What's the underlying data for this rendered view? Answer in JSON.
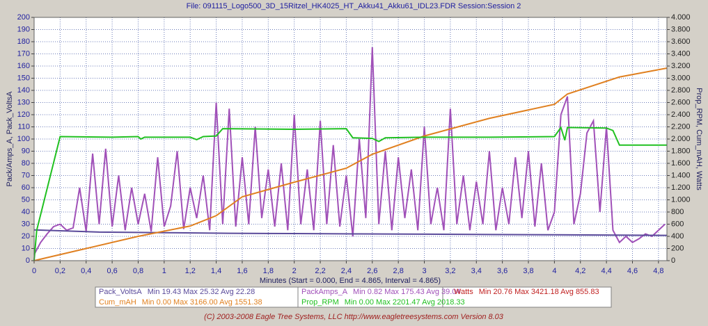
{
  "chart_data": {
    "type": "line",
    "title": "File: 091115_Logo500_3D_15Ritzel_HK4025_HT_Akku41_Akku61_IDL23.FDR   Session:Session 2",
    "x_label": "Minutes (Start = 0.000, End = 4.865, Interval = 4.865)",
    "y_label": "Pack/Amps_A, Pack_VoltsA",
    "y2_label": "Prop_RPM, Cum_mAH, Watts",
    "footer": "(C) 2003-2008 Eagle Tree Systems, LLC      http://www.eagletreesystems.com      Version 8.03",
    "grid": true,
    "xlim": [
      0,
      4.865
    ],
    "xticks": [
      0,
      {
        "value": 0.2,
        "label": "0,2"
      },
      {
        "value": 0.4,
        "label": "0,4"
      },
      {
        "value": 0.6,
        "label": "0,6"
      },
      {
        "value": 0.8,
        "label": "0,8"
      },
      1,
      {
        "value": 1.2,
        "label": "1,2"
      },
      {
        "value": 1.4,
        "label": "1,4"
      },
      {
        "value": 1.6,
        "label": "1,6"
      },
      {
        "value": 1.8,
        "label": "1,8"
      },
      2,
      {
        "value": 2.2,
        "label": "2,2"
      },
      {
        "value": 2.4,
        "label": "2,4"
      },
      {
        "value": 2.6,
        "label": "2,6"
      },
      {
        "value": 2.8,
        "label": "2,8"
      },
      3,
      {
        "value": 3.2,
        "label": "3,2"
      },
      {
        "value": 3.4,
        "label": "3,4"
      },
      {
        "value": 3.6,
        "label": "3,6"
      },
      {
        "value": 3.8,
        "label": "3,8"
      },
      4,
      {
        "value": 4.2,
        "label": "4,2"
      },
      {
        "value": 4.4,
        "label": "4,4"
      },
      {
        "value": 4.6,
        "label": "4,6"
      },
      {
        "value": 4.8,
        "label": "4,8"
      }
    ],
    "ylim": [
      0,
      200
    ],
    "yticks": [
      0,
      10,
      20,
      30,
      40,
      50,
      60,
      70,
      80,
      90,
      100,
      110,
      120,
      130,
      140,
      150,
      160,
      170,
      180,
      190,
      200
    ],
    "y2lim": [
      0,
      4000
    ],
    "y2ticks": [
      0,
      200,
      400,
      600,
      800,
      {
        "value": 1000,
        "label": "1.000"
      },
      {
        "value": 1200,
        "label": "1.200"
      },
      {
        "value": 1400,
        "label": "1.400"
      },
      {
        "value": 1600,
        "label": "1.600"
      },
      {
        "value": 1800,
        "label": "1.800"
      },
      {
        "value": 2000,
        "label": "2.000"
      },
      {
        "value": 2200,
        "label": "2.200"
      },
      {
        "value": 2400,
        "label": "2.400"
      },
      {
        "value": 2600,
        "label": "2.600"
      },
      {
        "value": 2800,
        "label": "2.800"
      },
      {
        "value": 3000,
        "label": "3.000"
      },
      {
        "value": 3200,
        "label": "3.200"
      },
      {
        "value": 3400,
        "label": "3.400"
      },
      {
        "value": 3600,
        "label": "3.600"
      },
      {
        "value": 3800,
        "label": "3.800"
      },
      {
        "value": 4000,
        "label": "4.000"
      }
    ],
    "series": [
      {
        "name": "Pack_VoltsA",
        "color": "#5a4a9a",
        "stats": "Min 19.43    Max 25.32    Avg 22.28",
        "x": [
          0,
          0.5,
          1.0,
          1.5,
          2.0,
          2.5,
          3.0,
          3.5,
          4.0,
          4.5,
          4.865
        ],
        "values": [
          25.3,
          23.5,
          23,
          22.5,
          22.3,
          22,
          21.8,
          21.5,
          21.3,
          21,
          20.8
        ]
      },
      {
        "name": "PackAmps_A",
        "color": "#a050b8",
        "stats": "Min 0.82    Max 175.43    Avg 39.04",
        "x": [
          0,
          0.05,
          0.1,
          0.15,
          0.2,
          0.25,
          0.3,
          0.35,
          0.4,
          0.45,
          0.5,
          0.55,
          0.6,
          0.65,
          0.7,
          0.75,
          0.8,
          0.85,
          0.9,
          0.95,
          1.0,
          1.05,
          1.1,
          1.15,
          1.2,
          1.25,
          1.3,
          1.35,
          1.4,
          1.45,
          1.5,
          1.55,
          1.6,
          1.65,
          1.7,
          1.75,
          1.8,
          1.85,
          1.9,
          1.95,
          2.0,
          2.05,
          2.1,
          2.15,
          2.2,
          2.25,
          2.3,
          2.35,
          2.4,
          2.45,
          2.5,
          2.55,
          2.6,
          2.65,
          2.7,
          2.75,
          2.8,
          2.85,
          2.9,
          2.95,
          3.0,
          3.05,
          3.1,
          3.15,
          3.2,
          3.25,
          3.3,
          3.35,
          3.4,
          3.45,
          3.5,
          3.55,
          3.6,
          3.65,
          3.7,
          3.75,
          3.8,
          3.85,
          3.9,
          3.95,
          4.0,
          4.05,
          4.1,
          4.15,
          4.2,
          4.25,
          4.3,
          4.35,
          4.4,
          4.45,
          4.5,
          4.55,
          4.6,
          4.65,
          4.7,
          4.75,
          4.8,
          4.85
        ],
        "values": [
          5,
          15,
          22,
          28,
          30,
          25,
          27,
          60,
          24,
          88,
          30,
          92,
          28,
          70,
          25,
          60,
          30,
          55,
          24,
          85,
          28,
          45,
          90,
          26,
          60,
          35,
          70,
          25,
          130,
          30,
          125,
          28,
          85,
          30,
          110,
          35,
          75,
          28,
          80,
          25,
          120,
          30,
          75,
          25,
          115,
          30,
          95,
          28,
          70,
          20,
          100,
          35,
          175.43,
          30,
          90,
          25,
          85,
          35,
          75,
          25,
          110,
          30,
          60,
          25,
          125,
          30,
          70,
          25,
          65,
          30,
          90,
          25,
          60,
          30,
          85,
          35,
          90,
          28,
          80,
          25,
          40,
          120,
          135,
          30,
          55,
          105,
          115,
          40,
          110,
          25,
          15,
          20,
          15,
          18,
          22,
          20,
          25,
          30
        ]
      },
      {
        "name": "Cum_mAH",
        "color": "#e08020",
        "axis": "y2",
        "stats": "Min 0.00    Max 3166.00    Avg 1551.38",
        "x": [
          0,
          0.4,
          0.8,
          1.2,
          1.4,
          1.6,
          2.0,
          2.4,
          2.6,
          3.0,
          3.5,
          4.0,
          4.1,
          4.5,
          4.865
        ],
        "values": [
          0,
          200,
          400,
          570,
          740,
          1050,
          1290,
          1520,
          1750,
          2050,
          2340,
          2570,
          2740,
          3020,
          3166
        ]
      },
      {
        "name": "Prop_RPM",
        "color": "#20c020",
        "axis": "y2",
        "stats": "Min 0.00    Max 2201.47    Avg 2018.33",
        "x": [
          0,
          0.02,
          0.2,
          0.6,
          0.8,
          0.82,
          0.85,
          1.2,
          1.25,
          1.3,
          1.4,
          1.45,
          2.0,
          2.4,
          2.45,
          2.6,
          2.65,
          2.7,
          3.0,
          3.5,
          4.0,
          4.05,
          4.08,
          4.1,
          4.4,
          4.45,
          4.5,
          4.865
        ],
        "values": [
          0,
          500,
          2040,
          2030,
          2040,
          2000,
          2030,
          2030,
          1990,
          2040,
          2050,
          2170,
          2160,
          2170,
          2020,
          2010,
          1960,
          2020,
          2030,
          2030,
          2040,
          2190,
          1980,
          2190,
          2180,
          2140,
          1900,
          1900
        ]
      }
    ],
    "extra_legend": {
      "name": "Watts",
      "color": "#c02020",
      "stats": "Min 20.76    Max 3421.18    Avg 855.83"
    }
  }
}
